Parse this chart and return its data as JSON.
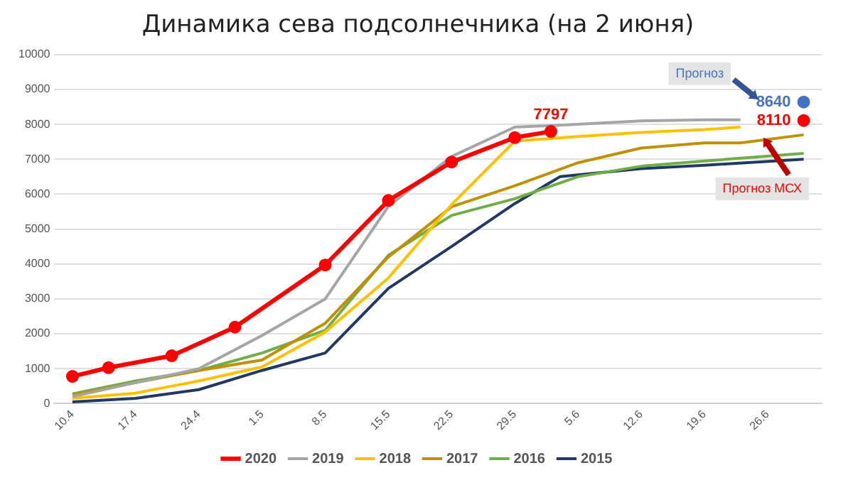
{
  "chart_data": {
    "type": "line",
    "title": "Динамика сева подсолнечника (на 2 июня)",
    "xlim": [
      "--04-08",
      "--07-02"
    ],
    "ylim": [
      0,
      10000
    ],
    "xticks": [
      {
        "value": "--04-10",
        "label": "10.4"
      },
      {
        "value": "--04-17",
        "label": "17.4"
      },
      {
        "value": "--04-24",
        "label": "24.4"
      },
      {
        "value": "--05-01",
        "label": "1.5"
      },
      {
        "value": "--05-08",
        "label": "8.5"
      },
      {
        "value": "--05-15",
        "label": "15.5"
      },
      {
        "value": "--05-22",
        "label": "22.5"
      },
      {
        "value": "--05-29",
        "label": "29.5"
      },
      {
        "value": "--06-05",
        "label": "5.6"
      },
      {
        "value": "--06-12",
        "label": "12.6"
      },
      {
        "value": "--06-19",
        "label": "19.6"
      },
      {
        "value": "--06-26",
        "label": "26.6"
      }
    ],
    "yticks": [
      0,
      1000,
      2000,
      3000,
      4000,
      5000,
      6000,
      7000,
      8000,
      9000,
      10000
    ],
    "grid": "y",
    "legend": "bottom",
    "marker": "none",
    "series": [
      {
        "type": "scatter",
        "color": "#4472c4",
        "marker": "circle",
        "x": [
          "--06-30"
        ],
        "values": [
          8640
        ],
        "value_labels": [
          "8640"
        ]
      },
      {
        "name": "2020",
        "color": "#ff0000",
        "marker": "circle",
        "x": [
          "--04-10",
          "--04-14",
          "--04-21",
          "--04-28",
          "--05-08",
          "--05-15",
          "--05-22",
          "--05-29",
          "--06-02"
        ],
        "values": [
          780,
          1030,
          1370,
          2190,
          3970,
          5820,
          6920,
          7620,
          7797
        ],
        "value_labels": [
          null,
          null,
          null,
          null,
          null,
          null,
          null,
          null,
          "7797"
        ]
      },
      {
        "name": "2019",
        "color": "#a5a5a5",
        "x": [
          "--04-10",
          "--04-17",
          "--04-24",
          "--05-01",
          "--05-08",
          "--05-15",
          "--05-22",
          "--05-29",
          "--06-05",
          "--06-12",
          "--06-19",
          "--06-23"
        ],
        "values": [
          200,
          600,
          1000,
          1950,
          3000,
          5650,
          7080,
          7920,
          8000,
          8100,
          8130,
          8130
        ]
      },
      {
        "name": "2018",
        "color": "#ffc000",
        "x": [
          "--04-10",
          "--04-17",
          "--04-24",
          "--05-01",
          "--05-08",
          "--05-15",
          "--05-22",
          "--05-29",
          "--06-05",
          "--06-12",
          "--06-19",
          "--06-23"
        ],
        "values": [
          150,
          300,
          650,
          1050,
          2050,
          3600,
          5700,
          7520,
          7650,
          7770,
          7850,
          7920
        ]
      },
      {
        "name": "2017",
        "color": "#bf9000",
        "x": [
          "--04-10",
          "--04-17",
          "--04-24",
          "--05-01",
          "--05-08",
          "--05-15",
          "--05-22",
          "--05-29",
          "--06-05",
          "--06-12",
          "--06-19",
          "--06-23",
          "--06-30"
        ],
        "values": [
          250,
          600,
          950,
          1250,
          2300,
          4200,
          5640,
          6240,
          6900,
          7320,
          7470,
          7470,
          7700
        ]
      },
      {
        "name": "2016",
        "color": "#70ad47",
        "x": [
          "--04-10",
          "--04-17",
          "--04-24",
          "--05-01",
          "--05-08",
          "--05-15",
          "--05-22",
          "--05-29",
          "--06-05",
          "--06-12",
          "--06-19",
          "--06-30"
        ],
        "values": [
          280,
          650,
          950,
          1450,
          2100,
          4250,
          5390,
          5870,
          6500,
          6800,
          6950,
          7170
        ]
      },
      {
        "name": "2015",
        "color": "#203864",
        "x": [
          "--04-10",
          "--04-17",
          "--04-24",
          "--05-01",
          "--05-08",
          "--05-15",
          "--05-22",
          "--05-29",
          "--06-03",
          "--06-12",
          "--06-19",
          "--06-30"
        ],
        "values": [
          50,
          150,
          400,
          950,
          1450,
          3300,
          4500,
          5730,
          6500,
          6730,
          6830,
          7000
        ]
      },
      {
        "type": "scatter",
        "color": "#ff0000",
        "marker": "circle",
        "x": [
          "--06-30"
        ],
        "values": [
          8110
        ],
        "value_labels": [
          "8110"
        ]
      }
    ],
    "annotations": [
      "Прогноз",
      "Прогноз МСХ"
    ]
  }
}
